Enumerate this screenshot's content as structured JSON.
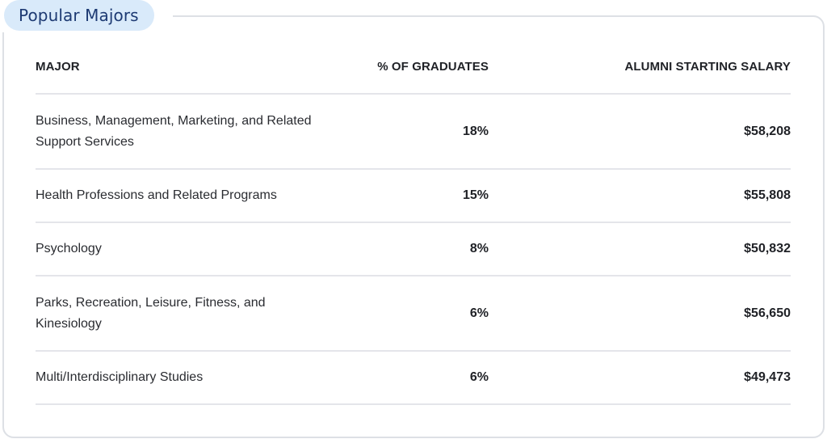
{
  "section": {
    "title": "Popular Majors"
  },
  "table": {
    "headers": {
      "major": "MAJOR",
      "percent": "% OF GRADUATES",
      "salary": "ALUMNI STARTING SALARY"
    },
    "rows": [
      {
        "major": "Business, Management, Marketing, and Related Support Services",
        "percent": "18%",
        "salary": "$58,208"
      },
      {
        "major": "Health Professions and Related Programs",
        "percent": "15%",
        "salary": "$55,808"
      },
      {
        "major": "Psychology",
        "percent": "8%",
        "salary": "$50,832"
      },
      {
        "major": "Parks, Recreation, Leisure, Fitness, and Kinesiology",
        "percent": "6%",
        "salary": "$56,650"
      },
      {
        "major": "Multi/Interdisciplinary Studies",
        "percent": "6%",
        "salary": "$49,473"
      }
    ]
  },
  "colors": {
    "pill_background": "#d9eafa",
    "pill_text": "#1d3a73",
    "border": "#dde0e5",
    "divider": "#e4e5ea",
    "text": "#1f2126"
  }
}
